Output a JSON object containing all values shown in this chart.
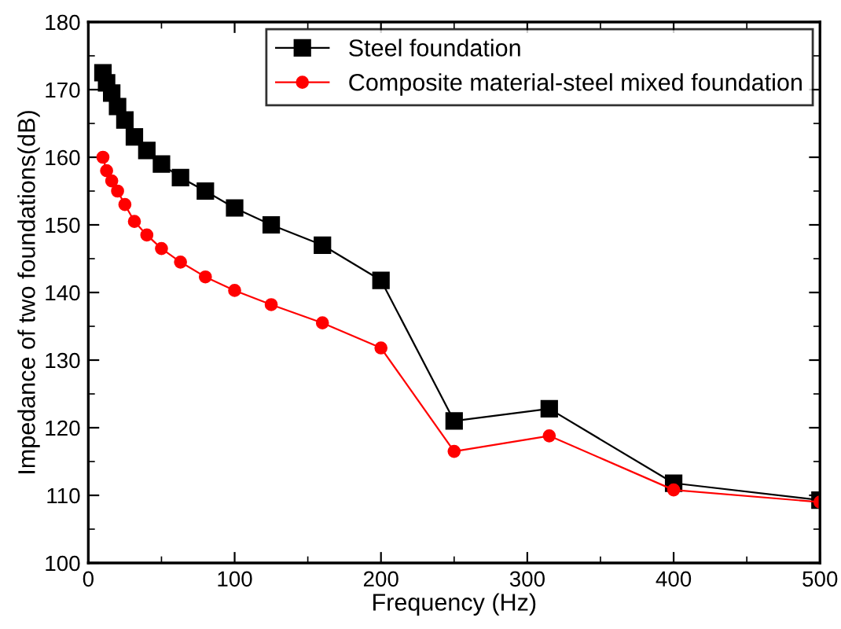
{
  "chart_data": {
    "type": "line",
    "xlabel": "Frequency (Hz)",
    "ylabel": "Impedance of two foundations(dB)",
    "x": [
      10,
      12.5,
      16,
      20,
      25,
      31.5,
      40,
      50,
      63,
      80,
      100,
      125,
      160,
      200,
      250,
      315,
      400,
      500
    ],
    "series": [
      {
        "name": "Steel foundation",
        "color": "#000000",
        "marker": "square",
        "values": [
          172.5,
          171,
          169.5,
          167.5,
          165.5,
          163,
          161,
          159,
          157,
          155,
          152.5,
          150,
          147,
          141.8,
          121,
          122.8,
          111.8,
          109.3
        ]
      },
      {
        "name": "Composite material-steel mixed foundation",
        "color": "#ff0000",
        "marker": "circle",
        "values": [
          160,
          158,
          156.5,
          155,
          153,
          150.5,
          148.5,
          146.5,
          144.5,
          142.3,
          140.3,
          138.2,
          135.5,
          131.8,
          116.5,
          118.8,
          110.8,
          109
        ]
      }
    ],
    "xlim": [
      0,
      500
    ],
    "xticks": [
      0,
      100,
      200,
      300,
      400,
      500
    ],
    "ylim": [
      100,
      180
    ],
    "yticks": [
      100,
      110,
      120,
      130,
      140,
      150,
      160,
      170,
      180
    ],
    "grid": false,
    "legend": "top right",
    "line_style": "solid"
  }
}
